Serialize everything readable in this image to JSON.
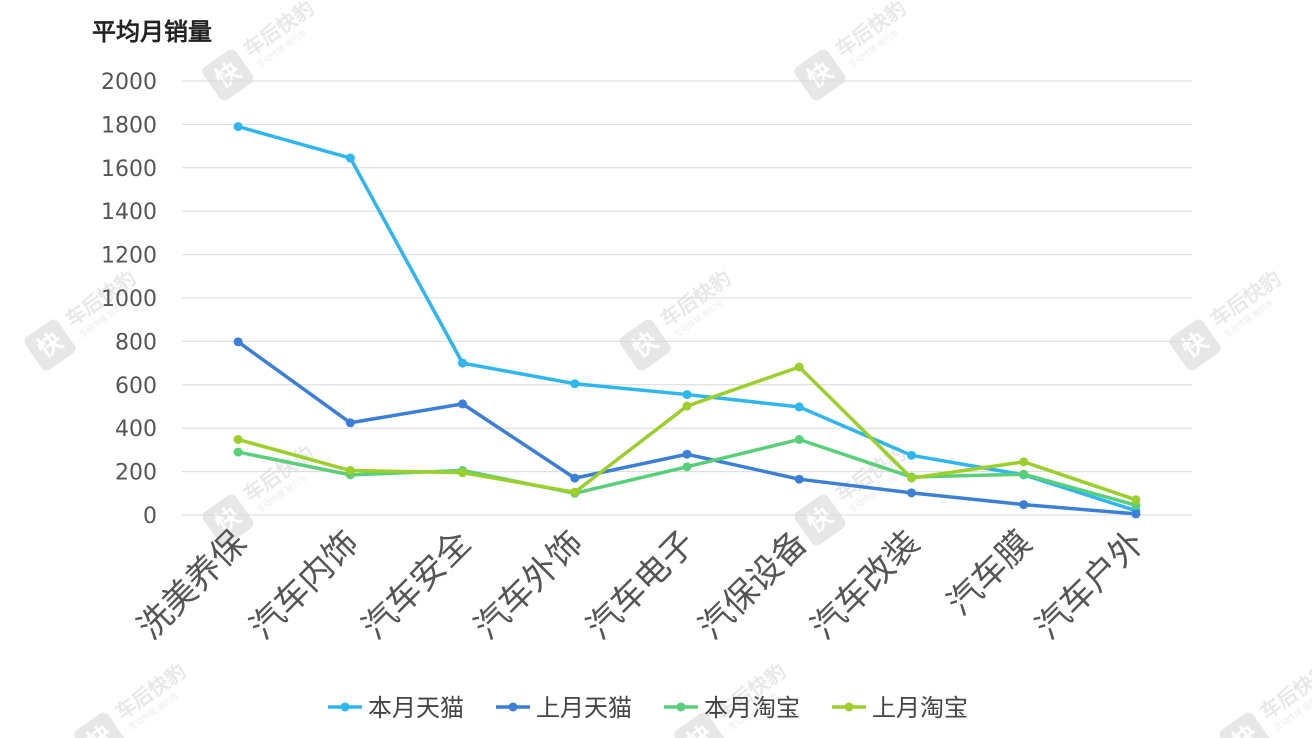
{
  "chart_data": {
    "type": "line",
    "ylabel": "平均月销量",
    "xlabel": "",
    "ylim": [
      0,
      2000
    ],
    "yticks": [
      0,
      200,
      400,
      600,
      800,
      1000,
      1200,
      1400,
      1600,
      1800,
      2000
    ],
    "grid": true,
    "legend_position": "bottom",
    "categories": [
      "洗美养保",
      "汽车内饰",
      "汽车安全",
      "汽车外饰",
      "汽车电子",
      "汽保设备",
      "汽车改装",
      "汽车膜",
      "汽车户外"
    ],
    "series": [
      {
        "name": "本月天猫",
        "color": "#2eb6ef",
        "values": [
          1790,
          1645,
          700,
          605,
          555,
          498,
          275,
          185,
          20
        ]
      },
      {
        "name": "上月天猫",
        "color": "#3c7fd6",
        "values": [
          798,
          425,
          512,
          170,
          280,
          165,
          102,
          48,
          5
        ]
      },
      {
        "name": "本月淘宝",
        "color": "#5acf7a",
        "values": [
          290,
          185,
          205,
          100,
          222,
          348,
          175,
          188,
          45
        ]
      },
      {
        "name": "上月淘宝",
        "color": "#9ccf2b",
        "values": [
          348,
          205,
          195,
          105,
          502,
          682,
          170,
          245,
          70
        ]
      }
    ]
  },
  "watermark": {
    "brand": "车后快豹",
    "tagline": "互动传媒  我们专",
    "logo_char": "快"
  }
}
